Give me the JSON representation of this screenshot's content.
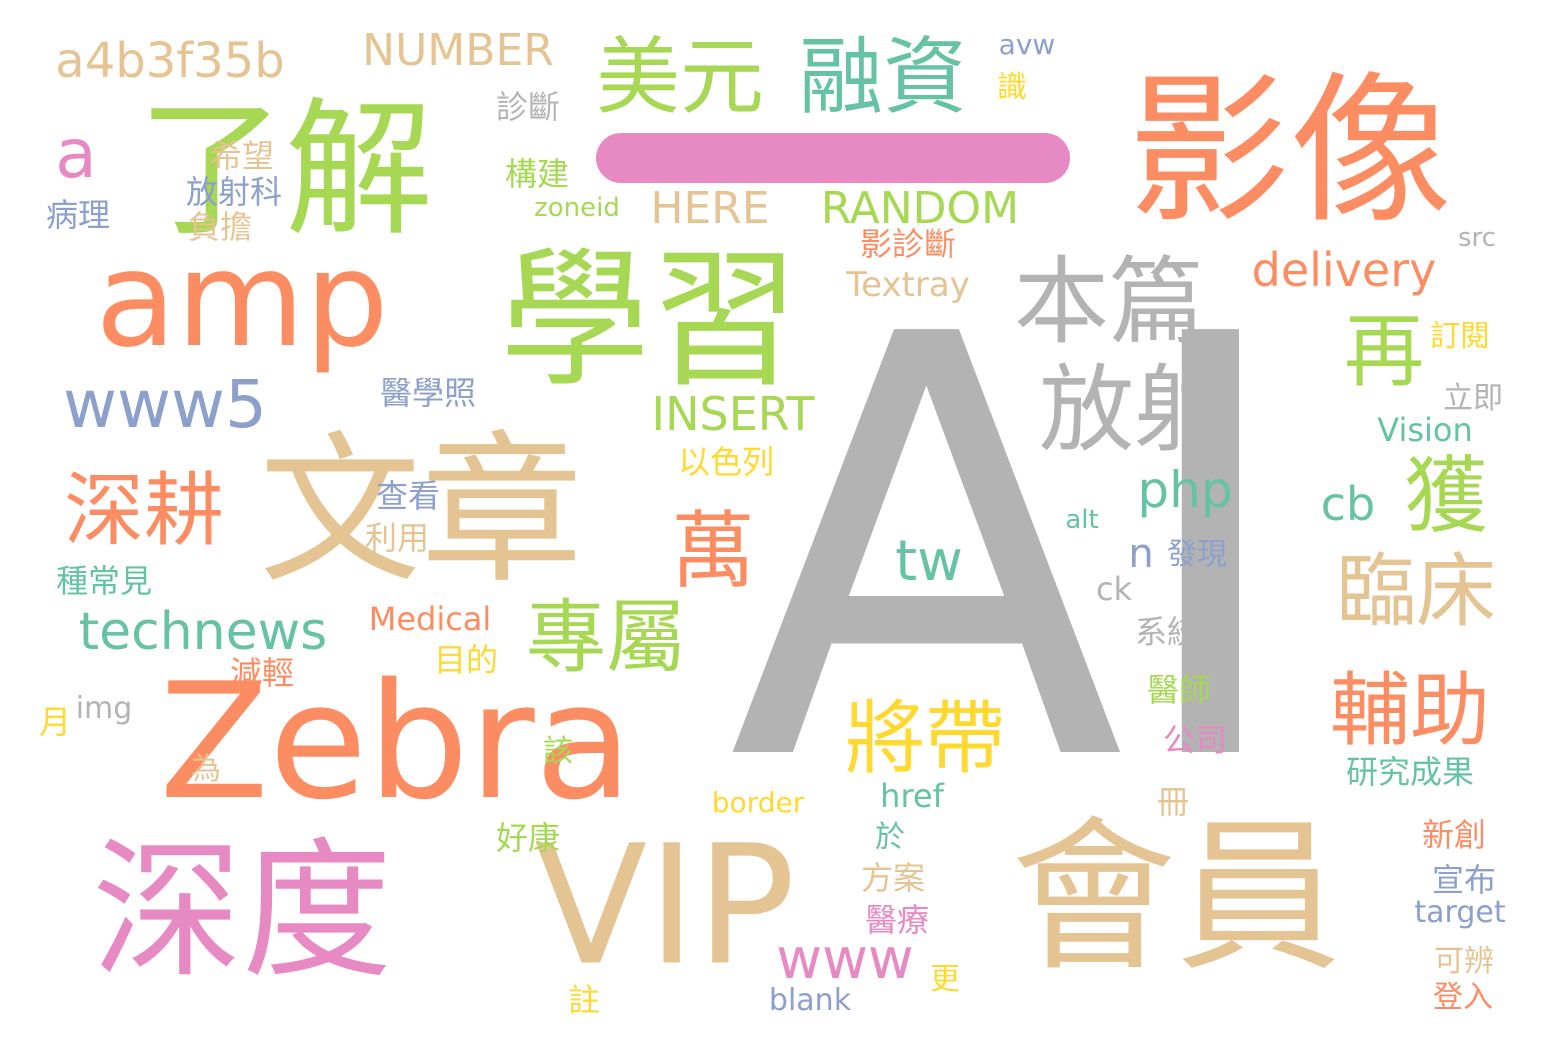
{
  "colors": {
    "gray": "#b3b3b3",
    "orange": "#fc8d62",
    "tan": "#e5c494",
    "green": "#a6d854",
    "pink": "#e78ac3",
    "teal": "#66c2a5",
    "blue": "#8da0cb",
    "yellow": "#ffd92f"
  },
  "words": [
    {
      "id": "w-AI",
      "text": "AI",
      "color": "gray"
    },
    {
      "id": "w-yingxiang",
      "text": "影像",
      "color": "orange"
    },
    {
      "id": "w-huiyuan",
      "text": "會員",
      "color": "tan"
    },
    {
      "id": "w-VIP",
      "text": "VIP",
      "color": "tan"
    },
    {
      "id": "w-wenzhang",
      "text": "文章",
      "color": "tan"
    },
    {
      "id": "w-zebra",
      "text": "Zebra",
      "color": "orange"
    },
    {
      "id": "w-shendu",
      "text": "深度",
      "color": "pink"
    },
    {
      "id": "w-liaojie",
      "text": "了解",
      "color": "green"
    },
    {
      "id": "w-xuexi",
      "text": "學習",
      "color": "green"
    },
    {
      "id": "w-amp",
      "text": "amp",
      "color": "orange"
    },
    {
      "id": "w-benpian",
      "text": "本篇",
      "color": "gray"
    },
    {
      "id": "w-fangshe",
      "text": "放射",
      "color": "gray"
    },
    {
      "id": "w-meiyuan",
      "text": "美元",
      "color": "green"
    },
    {
      "id": "w-rongzi",
      "text": "融資",
      "color": "teal"
    },
    {
      "id": "w-shengeng",
      "text": "深耕",
      "color": "orange"
    },
    {
      "id": "w-wan",
      "text": "萬",
      "color": "orange"
    },
    {
      "id": "w-zhuanshu",
      "text": "專屬",
      "color": "green"
    },
    {
      "id": "w-jiangdai",
      "text": "將帶",
      "color": "yellow"
    },
    {
      "id": "w-linchuang",
      "text": "臨床",
      "color": "tan"
    },
    {
      "id": "w-fuzhu",
      "text": "輔助",
      "color": "orange"
    },
    {
      "id": "w-huo",
      "text": "獲",
      "color": "green"
    },
    {
      "id": "w-zai",
      "text": "再",
      "color": "green"
    },
    {
      "id": "w-www5",
      "text": "www5",
      "color": "blue"
    },
    {
      "id": "w-technews",
      "text": "technews",
      "color": "teal"
    },
    {
      "id": "w-a4b",
      "text": "a4b3f35b",
      "color": "tan"
    },
    {
      "id": "w-number",
      "text": "NUMBER",
      "color": "tan"
    },
    {
      "id": "w-a",
      "text": "a",
      "color": "pink"
    },
    {
      "id": "w-insert",
      "text": "INSERT",
      "color": "green"
    },
    {
      "id": "w-here",
      "text": "HERE",
      "color": "tan"
    },
    {
      "id": "w-random",
      "text": "RANDOM",
      "color": "green"
    },
    {
      "id": "w-delivery",
      "text": "delivery",
      "color": "orange"
    },
    {
      "id": "w-php",
      "text": "php",
      "color": "teal"
    },
    {
      "id": "w-cb",
      "text": "cb",
      "color": "teal"
    },
    {
      "id": "w-tw",
      "text": "tw",
      "color": "teal"
    },
    {
      "id": "w-n",
      "text": "n",
      "color": "blue"
    },
    {
      "id": "w-www",
      "text": "www",
      "color": "pink"
    },
    {
      "id": "w-textray",
      "text": "Textray",
      "color": "tan"
    },
    {
      "id": "w-medical",
      "text": "Medical",
      "color": "orange"
    },
    {
      "id": "w-vision",
      "text": "Vision",
      "color": "teal"
    },
    {
      "id": "w-zoneid",
      "text": "zoneid",
      "color": "green"
    },
    {
      "id": "w-avw",
      "text": "avw",
      "color": "blue"
    },
    {
      "id": "w-src",
      "text": "src",
      "color": "gray"
    },
    {
      "id": "w-alt",
      "text": "alt",
      "color": "teal"
    },
    {
      "id": "w-ck",
      "text": "ck",
      "color": "gray"
    },
    {
      "id": "w-img",
      "text": "img",
      "color": "gray"
    },
    {
      "id": "w-border",
      "text": "border",
      "color": "yellow"
    },
    {
      "id": "w-href",
      "text": "href",
      "color": "teal"
    },
    {
      "id": "w-target",
      "text": "target",
      "color": "blue"
    },
    {
      "id": "w-blank",
      "text": "blank",
      "color": "blue"
    },
    {
      "id": "w-zhenduan",
      "text": "診斷",
      "color": "gray"
    },
    {
      "id": "w-shi",
      "text": "識",
      "color": "yellow"
    },
    {
      "id": "w-xiwang",
      "text": "希望",
      "color": "tan"
    },
    {
      "id": "w-fangshek",
      "text": "放射科",
      "color": "blue"
    },
    {
      "id": "w-fudan",
      "text": "負擔",
      "color": "tan"
    },
    {
      "id": "w-bingli",
      "text": "病理",
      "color": "blue"
    },
    {
      "id": "w-goujian",
      "text": "構建",
      "color": "green"
    },
    {
      "id": "w-yingzd",
      "text": "影診斷",
      "color": "orange"
    },
    {
      "id": "w-dingyue",
      "text": "訂閱",
      "color": "yellow"
    },
    {
      "id": "w-lijie",
      "text": "立即",
      "color": "gray"
    },
    {
      "id": "w-yixuez",
      "text": "醫學照",
      "color": "blue"
    },
    {
      "id": "w-yisel",
      "text": "以色列",
      "color": "yellow"
    },
    {
      "id": "w-chakan",
      "text": "查看",
      "color": "blue"
    },
    {
      "id": "w-liyong",
      "text": "利用",
      "color": "tan"
    },
    {
      "id": "w-faxian",
      "text": "發現",
      "color": "blue"
    },
    {
      "id": "w-zhongcj",
      "text": "種常見",
      "color": "teal"
    },
    {
      "id": "w-xitong",
      "text": "系統",
      "color": "gray"
    },
    {
      "id": "w-jianqing",
      "text": "減輕",
      "color": "orange"
    },
    {
      "id": "w-mudi",
      "text": "目的",
      "color": "yellow"
    },
    {
      "id": "w-yishi",
      "text": "醫師",
      "color": "green"
    },
    {
      "id": "w-yue",
      "text": "月",
      "color": "yellow"
    },
    {
      "id": "w-gongsi",
      "text": "公司",
      "color": "pink"
    },
    {
      "id": "w-gai",
      "text": "該",
      "color": "green"
    },
    {
      "id": "w-wei",
      "text": "為",
      "color": "tan"
    },
    {
      "id": "w-yanjiu",
      "text": "研究成果",
      "color": "teal"
    },
    {
      "id": "w-ce",
      "text": "冊",
      "color": "tan"
    },
    {
      "id": "w-haokang",
      "text": "好康",
      "color": "green"
    },
    {
      "id": "w-yu",
      "text": "於",
      "color": "teal"
    },
    {
      "id": "w-xinchuang",
      "text": "新創",
      "color": "orange"
    },
    {
      "id": "w-fangan",
      "text": "方案",
      "color": "tan"
    },
    {
      "id": "w-xuanbu",
      "text": "宣布",
      "color": "blue"
    },
    {
      "id": "w-yiliao",
      "text": "醫療",
      "color": "pink"
    },
    {
      "id": "w-kebian",
      "text": "可辨",
      "color": "tan"
    },
    {
      "id": "w-geng",
      "text": "更",
      "color": "yellow"
    },
    {
      "id": "w-zhu",
      "text": "註",
      "color": "yellow"
    },
    {
      "id": "w-dengru",
      "text": "登入",
      "color": "orange"
    }
  ],
  "dash_color": "pink"
}
